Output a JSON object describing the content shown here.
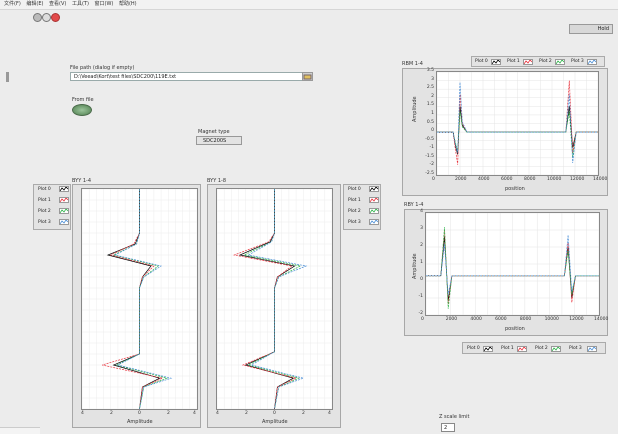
{
  "menu": [
    "文件(F)",
    "编辑(E)",
    "查看(V)",
    "工具(T)",
    "窗口(W)",
    "帮助(H)"
  ],
  "top_right_label": "Hold",
  "file_path": {
    "label": "File path (dialog if empty)",
    "value": "D:\\Veead\\Kort\\test files\\SDC200\\119E.txt"
  },
  "from_file_label": "From file",
  "magnet_type": {
    "label": "Magnet type",
    "value": "SDC200S"
  },
  "z_scale": {
    "label": "Z scale limit",
    "value": "2"
  },
  "colors": {
    "plot0": "#000000",
    "plot1": "#e8323c",
    "plot2": "#2fb34a",
    "plot3": "#4c8fd6"
  },
  "left_legend": {
    "items": [
      "Plot 0",
      "Plot 1",
      "Plot 2",
      "Plot 3"
    ]
  },
  "center_legend": {
    "items": [
      "Plot 0",
      "Plot 1",
      "Plot 2",
      "Plot 3"
    ]
  },
  "top_legend": {
    "items": [
      "Plot 0",
      "Plot 1",
      "Plot 2",
      "Plot 3"
    ]
  },
  "bottom_legend": {
    "items": [
      "Plot 0",
      "Plot 1",
      "Plot 2",
      "Plot 3"
    ]
  },
  "chart_data": [
    {
      "type": "line",
      "title": "BYY 1-4",
      "xlabel": "Amplitude",
      "x_ticks": [
        "4",
        "2",
        "0",
        "2",
        "4"
      ],
      "xlim": [
        -4,
        4
      ],
      "orientation": "vertical",
      "series": [
        {
          "name": "Plot 0",
          "color": "#000000",
          "points": [
            [
              0,
              0
            ],
            [
              0,
              0.2
            ],
            [
              -0.3,
              0.25
            ],
            [
              -2.2,
              0.3
            ],
            [
              0.8,
              0.35
            ],
            [
              0.2,
              0.4
            ],
            [
              0,
              0.45
            ],
            [
              0,
              0.75
            ],
            [
              -1.8,
              0.8
            ],
            [
              1.4,
              0.86
            ],
            [
              0.2,
              0.9
            ],
            [
              0,
              1
            ]
          ]
        },
        {
          "name": "Plot 1",
          "color": "#e8323c",
          "points": [
            [
              0,
              0
            ],
            [
              0,
              0.2
            ],
            [
              -0.4,
              0.25
            ],
            [
              -2.0,
              0.3
            ],
            [
              1.0,
              0.35
            ],
            [
              0.2,
              0.4
            ],
            [
              0,
              0.45
            ],
            [
              0,
              0.75
            ],
            [
              -2.6,
              0.8
            ],
            [
              1.6,
              0.86
            ],
            [
              0.2,
              0.9
            ],
            [
              0,
              1
            ]
          ]
        },
        {
          "name": "Plot 2",
          "color": "#2fb34a",
          "points": [
            [
              0,
              0
            ],
            [
              0,
              0.2
            ],
            [
              -0.2,
              0.25
            ],
            [
              -1.8,
              0.3
            ],
            [
              1.3,
              0.35
            ],
            [
              0.3,
              0.4
            ],
            [
              0,
              0.45
            ],
            [
              0,
              0.75
            ],
            [
              -1.6,
              0.8
            ],
            [
              1.9,
              0.86
            ],
            [
              0.3,
              0.9
            ],
            [
              0,
              1
            ]
          ]
        },
        {
          "name": "Plot 3",
          "color": "#4c8fd6",
          "points": [
            [
              0,
              0
            ],
            [
              0,
              0.2
            ],
            [
              -0.2,
              0.25
            ],
            [
              -1.7,
              0.3
            ],
            [
              1.5,
              0.35
            ],
            [
              0.3,
              0.4
            ],
            [
              0,
              0.45
            ],
            [
              0,
              0.75
            ],
            [
              -1.5,
              0.8
            ],
            [
              2.2,
              0.86
            ],
            [
              0.3,
              0.9
            ],
            [
              0,
              1
            ]
          ]
        }
      ]
    },
    {
      "type": "line",
      "title": "BYY 1-8",
      "xlabel": "Amplitude",
      "x_ticks": [
        "4",
        "2",
        "0",
        "2",
        "4"
      ],
      "xlim": [
        -4,
        4
      ],
      "orientation": "vertical",
      "series": [
        {
          "name": "Plot 0",
          "color": "#000000",
          "points": [
            [
              0,
              0
            ],
            [
              0,
              0.2
            ],
            [
              -0.3,
              0.24
            ],
            [
              -2.4,
              0.3
            ],
            [
              1.4,
              0.35
            ],
            [
              0.2,
              0.4
            ],
            [
              0,
              0.45
            ],
            [
              0,
              0.74
            ],
            [
              -2.0,
              0.8
            ],
            [
              1.3,
              0.86
            ],
            [
              0.2,
              0.9
            ],
            [
              0,
              1
            ]
          ]
        },
        {
          "name": "Plot 1",
          "color": "#e8323c",
          "points": [
            [
              0,
              0
            ],
            [
              0,
              0.2
            ],
            [
              -0.4,
              0.24
            ],
            [
              -2.8,
              0.3
            ],
            [
              1.2,
              0.35
            ],
            [
              0.2,
              0.4
            ],
            [
              0,
              0.45
            ],
            [
              0,
              0.74
            ],
            [
              -2.2,
              0.8
            ],
            [
              1.5,
              0.86
            ],
            [
              0.2,
              0.9
            ],
            [
              0,
              1
            ]
          ]
        },
        {
          "name": "Plot 2",
          "color": "#2fb34a",
          "points": [
            [
              0,
              0
            ],
            [
              0,
              0.2
            ],
            [
              -0.2,
              0.24
            ],
            [
              -2.1,
              0.3
            ],
            [
              1.8,
              0.35
            ],
            [
              0.3,
              0.4
            ],
            [
              0,
              0.45
            ],
            [
              0,
              0.74
            ],
            [
              -1.8,
              0.8
            ],
            [
              1.7,
              0.86
            ],
            [
              0.3,
              0.9
            ],
            [
              0,
              1
            ]
          ]
        },
        {
          "name": "Plot 3",
          "color": "#4c8fd6",
          "points": [
            [
              0,
              0
            ],
            [
              0,
              0.2
            ],
            [
              -0.2,
              0.24
            ],
            [
              -1.8,
              0.3
            ],
            [
              2.2,
              0.35
            ],
            [
              0.3,
              0.4
            ],
            [
              0,
              0.45
            ],
            [
              0,
              0.74
            ],
            [
              -1.6,
              0.8
            ],
            [
              2.0,
              0.86
            ],
            [
              0.3,
              0.9
            ],
            [
              0,
              1
            ]
          ]
        }
      ]
    },
    {
      "type": "line",
      "title": "RBM 1-4",
      "xlabel": "position",
      "ylabel": "Amplitude",
      "xlim": [
        0,
        14000
      ],
      "ylim": [
        -2.5,
        3.5
      ],
      "x_ticks": [
        "0",
        "2000",
        "4000",
        "6000",
        "8000",
        "10000",
        "12000",
        "14000"
      ],
      "y_ticks": [
        "3.5",
        "3",
        "2.5",
        "2",
        "1.5",
        "1",
        "0.5",
        "0",
        "-0.5",
        "-1",
        "-1.5",
        "-2",
        "-2.5"
      ],
      "series": [
        {
          "name": "Plot 0",
          "color": "#000000",
          "points": [
            [
              0,
              0
            ],
            [
              1400,
              0
            ],
            [
              1600,
              -0.8
            ],
            [
              1800,
              -1.3
            ],
            [
              2000,
              1.5
            ],
            [
              2200,
              0.4
            ],
            [
              2600,
              0
            ],
            [
              11200,
              0
            ],
            [
              11500,
              1.5
            ],
            [
              11800,
              -0.9
            ],
            [
              12100,
              0
            ],
            [
              14000,
              0
            ]
          ]
        },
        {
          "name": "Plot 1",
          "color": "#e8323c",
          "points": [
            [
              0,
              0
            ],
            [
              1400,
              0
            ],
            [
              1600,
              -1.0
            ],
            [
              1800,
              -1.9
            ],
            [
              2000,
              2.2
            ],
            [
              2200,
              0.5
            ],
            [
              2600,
              0
            ],
            [
              11200,
              0
            ],
            [
              11500,
              3.0
            ],
            [
              11800,
              -1.2
            ],
            [
              12100,
              0
            ],
            [
              14000,
              0
            ]
          ]
        },
        {
          "name": "Plot 2",
          "color": "#2fb34a",
          "points": [
            [
              0,
              0
            ],
            [
              1400,
              0
            ],
            [
              1600,
              -0.6
            ],
            [
              1800,
              -1.1
            ],
            [
              2000,
              1.2
            ],
            [
              2200,
              0.3
            ],
            [
              2600,
              0
            ],
            [
              11200,
              0
            ],
            [
              11500,
              1.2
            ],
            [
              11800,
              -1.5
            ],
            [
              12100,
              0
            ],
            [
              14000,
              0
            ]
          ]
        },
        {
          "name": "Plot 3",
          "color": "#4c8fd6",
          "points": [
            [
              0,
              0
            ],
            [
              1400,
              0
            ],
            [
              1600,
              -0.7
            ],
            [
              1800,
              -1.2
            ],
            [
              2000,
              2.9
            ],
            [
              2200,
              0.6
            ],
            [
              2600,
              0
            ],
            [
              11200,
              0
            ],
            [
              11500,
              2.2
            ],
            [
              11800,
              -1.8
            ],
            [
              12100,
              0
            ],
            [
              14000,
              0
            ]
          ]
        }
      ]
    },
    {
      "type": "line",
      "title": "RBY 1-4",
      "xlabel": "position",
      "ylabel": "Amplitude",
      "xlim": [
        0,
        14000
      ],
      "ylim": [
        -2.5,
        4
      ],
      "x_ticks": [
        "0",
        "2000",
        "4000",
        "6000",
        "8000",
        "10000",
        "12000",
        "14000"
      ],
      "y_ticks": [
        "4",
        "3",
        "2",
        "1",
        "0",
        "-1",
        "-2"
      ],
      "series": [
        {
          "name": "Plot 0",
          "color": "#000000",
          "points": [
            [
              0,
              0
            ],
            [
              1200,
              0
            ],
            [
              1500,
              2.5
            ],
            [
              1800,
              -1.6
            ],
            [
              2100,
              0
            ],
            [
              11200,
              0
            ],
            [
              11500,
              1.8
            ],
            [
              11800,
              -1.4
            ],
            [
              12100,
              0
            ],
            [
              14000,
              0
            ]
          ]
        },
        {
          "name": "Plot 1",
          "color": "#e8323c",
          "points": [
            [
              0,
              0
            ],
            [
              1200,
              0
            ],
            [
              1500,
              2.9
            ],
            [
              1800,
              -1.8
            ],
            [
              2100,
              0
            ],
            [
              11200,
              0
            ],
            [
              11500,
              2.1
            ],
            [
              11800,
              -1.7
            ],
            [
              12100,
              0
            ],
            [
              14000,
              0
            ]
          ]
        },
        {
          "name": "Plot 2",
          "color": "#2fb34a",
          "points": [
            [
              0,
              0
            ],
            [
              1200,
              0
            ],
            [
              1500,
              3.1
            ],
            [
              1800,
              -2.1
            ],
            [
              2100,
              0
            ],
            [
              11200,
              0
            ],
            [
              11500,
              1.6
            ],
            [
              11800,
              -1.2
            ],
            [
              12100,
              0
            ],
            [
              14000,
              0
            ]
          ]
        },
        {
          "name": "Plot 3",
          "color": "#4c8fd6",
          "points": [
            [
              0,
              0
            ],
            [
              1200,
              0
            ],
            [
              1500,
              2.0
            ],
            [
              1800,
              -1.2
            ],
            [
              2100,
              0
            ],
            [
              11200,
              0
            ],
            [
              11500,
              2.6
            ],
            [
              11800,
              -1.0
            ],
            [
              12100,
              0
            ],
            [
              14000,
              0
            ]
          ]
        }
      ]
    }
  ]
}
